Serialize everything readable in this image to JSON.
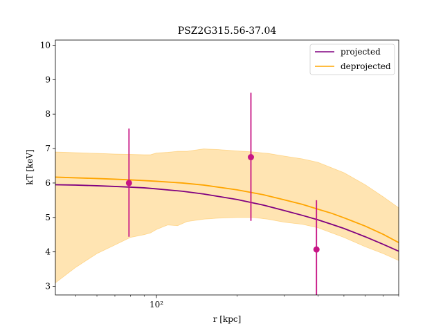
{
  "chart_data": {
    "type": "line",
    "title": "PSZ2G315.56-37.04",
    "xlabel": "r [kpc]",
    "ylabel": "kT [keV]",
    "xscale": "log",
    "xlim": [
      42,
      800
    ],
    "ylim": [
      2.75,
      10.15
    ],
    "y_ticks": [
      3,
      4,
      5,
      6,
      7,
      8,
      9,
      10
    ],
    "x_major_ticks": [
      {
        "value": 100,
        "label": "10²"
      }
    ],
    "x_minor_ticks": [
      50,
      60,
      70,
      80,
      90,
      200,
      300,
      400,
      500,
      600,
      700,
      800
    ],
    "legend": {
      "position": "top-right",
      "entries": [
        {
          "label": "projected",
          "color": "#800080"
        },
        {
          "label": "deprojected",
          "color": "#FFA500"
        }
      ]
    },
    "series": [
      {
        "name": "projected",
        "color": "#800080",
        "x": [
          42,
          50,
          60,
          70,
          80,
          90,
          100,
          125,
          150,
          200,
          250,
          300,
          350,
          400,
          450,
          500,
          600,
          700,
          800
        ],
        "y": [
          5.95,
          5.94,
          5.92,
          5.9,
          5.88,
          5.86,
          5.83,
          5.76,
          5.68,
          5.52,
          5.36,
          5.2,
          5.06,
          4.93,
          4.8,
          4.68,
          4.44,
          4.22,
          4.02
        ]
      },
      {
        "name": "deprojected",
        "color": "#FFA500",
        "x": [
          42,
          50,
          60,
          70,
          80,
          90,
          100,
          125,
          150,
          200,
          250,
          300,
          350,
          400,
          450,
          500,
          600,
          700,
          800
        ],
        "y": [
          6.17,
          6.15,
          6.13,
          6.11,
          6.09,
          6.07,
          6.05,
          6.0,
          5.94,
          5.8,
          5.66,
          5.51,
          5.38,
          5.24,
          5.12,
          4.99,
          4.75,
          4.51,
          4.27
        ]
      }
    ],
    "band": {
      "color": "#FFA500",
      "x": [
        42,
        50,
        60,
        70,
        80,
        90,
        95,
        100,
        110,
        120,
        130,
        150,
        170,
        200,
        230,
        260,
        300,
        350,
        400,
        500,
        600,
        700,
        800
      ],
      "upper": [
        6.9,
        6.88,
        6.86,
        6.84,
        6.83,
        6.82,
        6.82,
        6.87,
        6.89,
        6.92,
        6.92,
        6.99,
        6.97,
        6.93,
        6.9,
        6.86,
        6.78,
        6.7,
        6.6,
        6.3,
        5.95,
        5.6,
        5.28
      ],
      "lower": [
        3.1,
        3.55,
        3.95,
        4.2,
        4.42,
        4.5,
        4.55,
        4.65,
        4.78,
        4.76,
        4.88,
        4.95,
        4.98,
        5.0,
        5.0,
        4.95,
        4.86,
        4.8,
        4.7,
        4.42,
        4.15,
        3.95,
        3.75
      ]
    },
    "points": [
      {
        "x": 79,
        "y": 6.0,
        "yerr_low": 1.56,
        "yerr_high": 1.58
      },
      {
        "x": 225,
        "y": 6.75,
        "yerr_low": 1.85,
        "yerr_high": 1.87
      },
      {
        "x": 395,
        "y": 4.07,
        "yerr_low": 1.45,
        "yerr_high": 1.43
      }
    ],
    "point_color": "#C71585",
    "grid": false
  }
}
